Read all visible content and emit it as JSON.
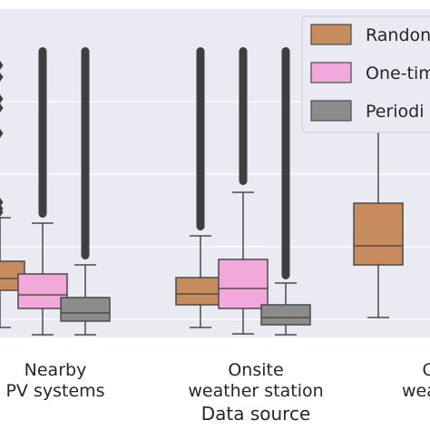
{
  "chart_data": {
    "type": "box",
    "title": "",
    "xlabel": "Data source",
    "ylabel": "",
    "categories": [
      [
        "Nearby",
        "PV systems"
      ],
      [
        "Onsite",
        "weather station"
      ],
      [
        "Ca",
        "weathe"
      ]
    ],
    "y_axis": {
      "grid": true,
      "tick_labels_visible": false
    },
    "legend": {
      "placement": "top-right",
      "entries": [
        "Randon",
        "One-tim",
        "Periodi"
      ]
    },
    "colors": {
      "random": "#c68c5e",
      "one_time": "#f2a8db",
      "periodic": "#8c8c8c",
      "plot_background": "#eaeaf2",
      "grid": "#ffffff",
      "median_line": "#5a4a3e",
      "whisker": "#4a4a4a",
      "text": "#262626"
    },
    "series": [
      {
        "key": "random",
        "color": "#c68c5e",
        "boxes": [
          {
            "category": 0,
            "q1": 0.26,
            "median": 0.325,
            "q3": 0.42,
            "whisker_low": 0.055,
            "whisker_high": 0.66,
            "outliers": [
              0.69,
              0.71,
              0.745,
              1.125,
              1.265,
              1.315,
              1.435,
              1.5
            ]
          },
          {
            "category": 1,
            "q1": 0.18,
            "median": 0.24,
            "q3": 0.33,
            "whisker_low": 0.055,
            "whisker_high": 0.56,
            "outlier_band": [
              0.59,
              1.6
            ]
          },
          {
            "category": 2,
            "q1": 0.4,
            "median": 0.505,
            "q3": 0.74,
            "whisker_low": 0.11,
            "whisker_high": 1.45,
            "outliers": [
              1.49
            ]
          }
        ]
      },
      {
        "key": "one_time",
        "color": "#f2a8db",
        "boxes": [
          {
            "category": 0,
            "q1": 0.16,
            "median": 0.235,
            "q3": 0.35,
            "whisker_low": 0.015,
            "whisker_high": 0.63,
            "outlier_band": [
              0.66,
              1.6
            ]
          },
          {
            "category": 1,
            "q1": 0.16,
            "median": 0.27,
            "q3": 0.43,
            "whisker_low": 0.02,
            "whisker_high": 0.8,
            "outlier_band": [
              0.84,
              1.6
            ]
          }
        ]
      },
      {
        "key": "periodic",
        "color": "#8c8c8c",
        "boxes": [
          {
            "category": 0,
            "q1": 0.09,
            "median": 0.135,
            "q3": 0.22,
            "whisker_low": 0.015,
            "whisker_high": 0.4,
            "outlier_band": [
              0.43,
              1.6
            ]
          },
          {
            "category": 1,
            "q1": 0.07,
            "median": 0.11,
            "q3": 0.18,
            "whisker_low": 0.015,
            "whisker_high": 0.3,
            "outlier_band": [
              0.32,
              1.6
            ]
          }
        ]
      }
    ]
  }
}
